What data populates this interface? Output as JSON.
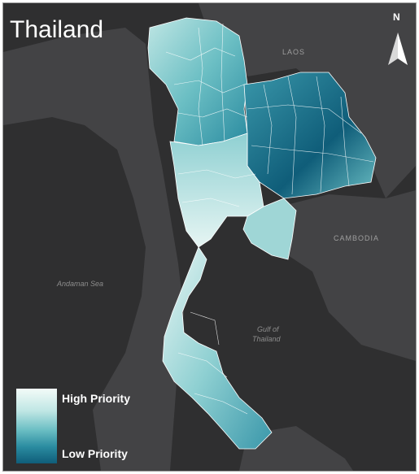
{
  "map": {
    "title": "Thailand",
    "north_label": "N",
    "labels": {
      "laos": "LAOS",
      "cambodia": "CAMBODIA",
      "andaman_sea": "Andaman Sea",
      "gulf_line1": "Gulf of",
      "gulf_line2": "Thailand"
    },
    "legend": {
      "high": "High Priority",
      "low": "Low Priority"
    },
    "colors": {
      "background": "#2f2f30",
      "land": "#434345",
      "high": "#f3fbf8",
      "mid": "#6cbfc4",
      "low": "#0f5d79",
      "border": "#ffffff"
    }
  }
}
